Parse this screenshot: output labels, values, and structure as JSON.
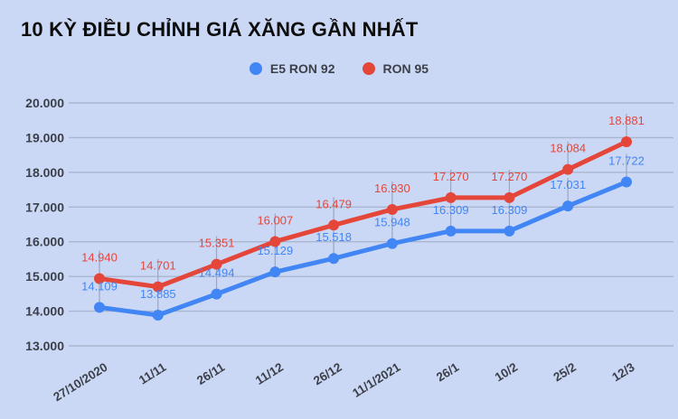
{
  "title": "10 KỲ ĐIỀU CHỈNH GIÁ XĂNG GẦN NHẤT",
  "colors": {
    "background": "#cbd8f5",
    "title_text": "#0d0d0d",
    "legend_text": "#3c4049",
    "axis_text": "#3b3f49",
    "grid": "#aab6cf",
    "stem": "#9aa6bf",
    "blue": "#4285f4",
    "red": "#e5463a"
  },
  "legend": [
    {
      "label": "E5 RON 92",
      "color": "#4285f4"
    },
    {
      "label": "RON 95",
      "color": "#e5463a"
    }
  ],
  "chart_data": {
    "type": "line",
    "title": "10 KỲ ĐIỀU CHỈNH GIÁ XĂNG GẦN NHẤT",
    "categories": [
      "27/10/2020",
      "11/11",
      "26/11",
      "11/12",
      "26/12",
      "11/1/2021",
      "26/1",
      "10/2",
      "25/2",
      "12/3"
    ],
    "series": [
      {
        "name": "E5 RON 92",
        "color": "#4285f4",
        "values": [
          14109,
          13885,
          14494,
          15129,
          15518,
          15948,
          16309,
          16309,
          17031,
          17722
        ],
        "labels": [
          "14.109",
          "13.885",
          "14.494",
          "15.129",
          "15.518",
          "15.948",
          "16.309",
          "16.309",
          "17.031",
          "17.722"
        ]
      },
      {
        "name": "RON 95",
        "color": "#e5463a",
        "values": [
          14940,
          14701,
          15351,
          16007,
          16479,
          16930,
          17270,
          17270,
          18084,
          18881
        ],
        "labels": [
          "14.940",
          "14.701",
          "15.351",
          "16.007",
          "16.479",
          "16.930",
          "17.270",
          "17.270",
          "18.084",
          "18.881"
        ]
      }
    ],
    "ylim": [
      13000,
      20000
    ],
    "ytick_step": 1000,
    "ytick_labels": [
      "13.000",
      "14.000",
      "15.000",
      "16.000",
      "17.000",
      "18.000",
      "19.000",
      "20.000"
    ],
    "xlabel": "",
    "ylabel": "",
    "grid": true,
    "legend_position": "top",
    "annotations": "point value labels shown above each data point with vertical stem lines"
  }
}
